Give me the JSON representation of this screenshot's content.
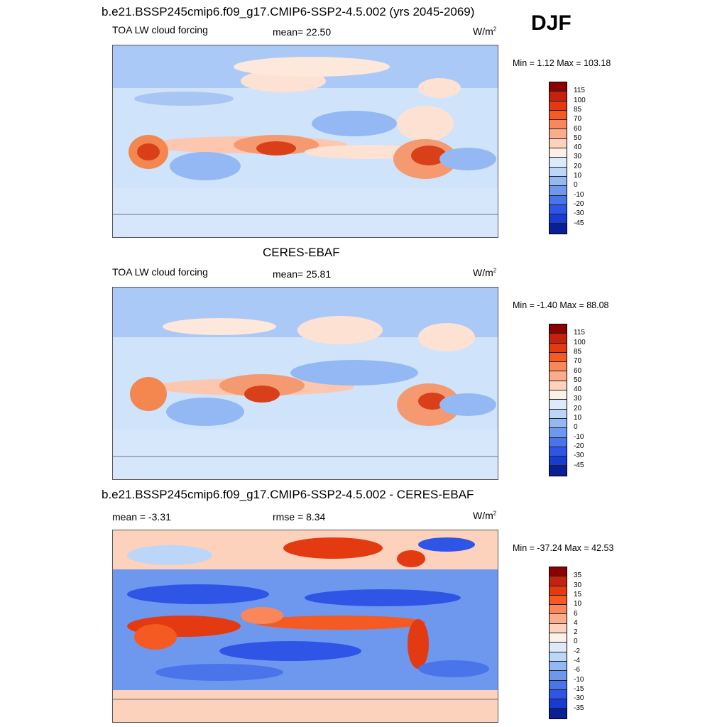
{
  "season": "DJF",
  "units": "W/m",
  "units_sup": "2",
  "panels": [
    {
      "title": "b.e21.BSSP245cmip6.f09_g17.CMIP6-SSP2-4.5.002 (yrs 2045-2069)",
      "variable": "TOA LW cloud forcing",
      "mean_label": "mean=  22.50",
      "minmax": "Min =   1.12 Max = 103.18",
      "colorbar": {
        "levels": [
          "115",
          "100",
          "85",
          "70",
          "60",
          "50",
          "40",
          "30",
          "20",
          "10",
          "0",
          "-10",
          "-20",
          "-30",
          "-45"
        ],
        "colors": [
          "#8b0000",
          "#c2220e",
          "#e33a12",
          "#f45a22",
          "#f9875a",
          "#fbac8b",
          "#fcd2bd",
          "#fdf0e6",
          "#dceafb",
          "#bcd6f8",
          "#93b8f3",
          "#6e98ee",
          "#4a74ea",
          "#2f55e6",
          "#173ccf",
          "#0a1e96"
        ]
      }
    },
    {
      "title": "CERES-EBAF",
      "variable": "TOA LW cloud forcing",
      "mean_label": "mean=  25.81",
      "minmax": "Min =  -1.40 Max =  88.08",
      "colorbar": {
        "levels": [
          "115",
          "100",
          "85",
          "70",
          "60",
          "50",
          "40",
          "30",
          "20",
          "10",
          "0",
          "-10",
          "-20",
          "-30",
          "-45"
        ],
        "colors": [
          "#8b0000",
          "#c2220e",
          "#e33a12",
          "#f45a22",
          "#f9875a",
          "#fbac8b",
          "#fcd2bd",
          "#fdf0e6",
          "#dceafb",
          "#bcd6f8",
          "#93b8f3",
          "#6e98ee",
          "#4a74ea",
          "#2f55e6",
          "#173ccf",
          "#0a1e96"
        ]
      }
    },
    {
      "title": "b.e21.BSSP245cmip6.f09_g17.CMIP6-SSP2-4.5.002 - CERES-EBAF",
      "mean_label": "mean =  -3.31",
      "rmse_label": "rmse =   8.34",
      "minmax": "Min = -37.24 Max =  42.53",
      "colorbar": {
        "levels": [
          "35",
          "30",
          "15",
          "10",
          "6",
          "4",
          "2",
          "0",
          "-2",
          "-4",
          "-6",
          "-10",
          "-15",
          "-30",
          "-35"
        ],
        "colors": [
          "#8b0000",
          "#c2220e",
          "#e33a12",
          "#f45a22",
          "#f9875a",
          "#fbac8b",
          "#fcd2bd",
          "#fdf0e6",
          "#dceafb",
          "#bcd6f8",
          "#93b8f3",
          "#6e98ee",
          "#4a74ea",
          "#2f55e6",
          "#173ccf",
          "#0a1e96"
        ]
      }
    }
  ],
  "chart_data": [
    {
      "type": "heatmap",
      "title": "b.e21.BSSP245cmip6.f09_g17.CMIP6-SSP2-4.5.002 (yrs 2045-2069)",
      "subtitle": "TOA LW cloud forcing",
      "mean": 22.5,
      "min": 1.12,
      "max": 103.18,
      "units": "W/m2",
      "season": "DJF"
    },
    {
      "type": "heatmap",
      "title": "CERES-EBAF",
      "subtitle": "TOA LW cloud forcing",
      "mean": 25.81,
      "min": -1.4,
      "max": 88.08,
      "units": "W/m2",
      "season": "DJF"
    },
    {
      "type": "heatmap",
      "title": "b.e21.BSSP245cmip6.f09_g17.CMIP6-SSP2-4.5.002 - CERES-EBAF",
      "mean": -3.31,
      "rmse": 8.34,
      "min": -37.24,
      "max": 42.53,
      "units": "W/m2",
      "season": "DJF"
    }
  ]
}
